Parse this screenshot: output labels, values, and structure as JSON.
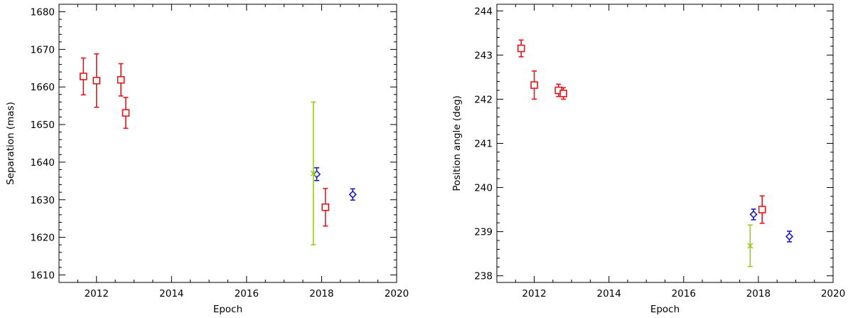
{
  "colors": {
    "red_squares": "#e8141b",
    "blue_diamonds": "#1c1ccc",
    "green_crosses": "#99cc22",
    "axes": "#000000"
  },
  "chart_data": [
    {
      "type": "scatter",
      "xlabel": "Epoch",
      "ylabel": "Separation (mas)",
      "xlim": [
        2011,
        2020
      ],
      "ylim": [
        1608,
        1682
      ],
      "xticks": [
        2012,
        2014,
        2016,
        2018,
        2020
      ],
      "yticks": [
        1610,
        1620,
        1630,
        1640,
        1650,
        1660,
        1670,
        1680
      ],
      "grid": false,
      "series": [
        {
          "marker": "square",
          "color": "#e8141b",
          "points": [
            {
              "x": 2011.65,
              "y": 1662.8,
              "err": 4.9
            },
            {
              "x": 2012.0,
              "y": 1661.7,
              "err": 7.1
            },
            {
              "x": 2012.65,
              "y": 1661.9,
              "err": 4.3
            },
            {
              "x": 2012.78,
              "y": 1653.1,
              "err": 4.1
            },
            {
              "x": 2018.1,
              "y": 1628.0,
              "err": 5.0
            }
          ]
        },
        {
          "marker": "diamond",
          "color": "#1c1ccc",
          "points": [
            {
              "x": 2017.87,
              "y": 1636.8,
              "err": 1.7
            },
            {
              "x": 2018.83,
              "y": 1631.4,
              "err": 1.5
            }
          ]
        },
        {
          "marker": "cross",
          "color": "#99cc22",
          "points": [
            {
              "x": 2017.78,
              "y": 1637.0,
              "err": 19.0
            }
          ]
        }
      ]
    },
    {
      "type": "scatter",
      "xlabel": "Epoch",
      "ylabel": "Position angle (deg)",
      "xlim": [
        2011,
        2020
      ],
      "ylim": [
        237.85,
        244.15
      ],
      "xticks": [
        2012,
        2014,
        2016,
        2018,
        2020
      ],
      "yticks": [
        238,
        239,
        240,
        241,
        242,
        243,
        244
      ],
      "grid": false,
      "series": [
        {
          "marker": "square",
          "color": "#e8141b",
          "points": [
            {
              "x": 2011.65,
              "y": 243.15,
              "err": 0.19
            },
            {
              "x": 2012.0,
              "y": 242.32,
              "err": 0.32
            },
            {
              "x": 2012.65,
              "y": 242.2,
              "err": 0.14
            },
            {
              "x": 2012.78,
              "y": 242.13,
              "err": 0.13
            },
            {
              "x": 2018.1,
              "y": 239.5,
              "err": 0.31
            }
          ]
        },
        {
          "marker": "diamond",
          "color": "#1c1ccc",
          "points": [
            {
              "x": 2017.87,
              "y": 239.39,
              "err": 0.12
            },
            {
              "x": 2018.83,
              "y": 238.89,
              "err": 0.12
            }
          ]
        },
        {
          "marker": "cross",
          "color": "#99cc22",
          "points": [
            {
              "x": 2017.78,
              "y": 238.68,
              "err": 0.47
            }
          ]
        }
      ]
    }
  ]
}
